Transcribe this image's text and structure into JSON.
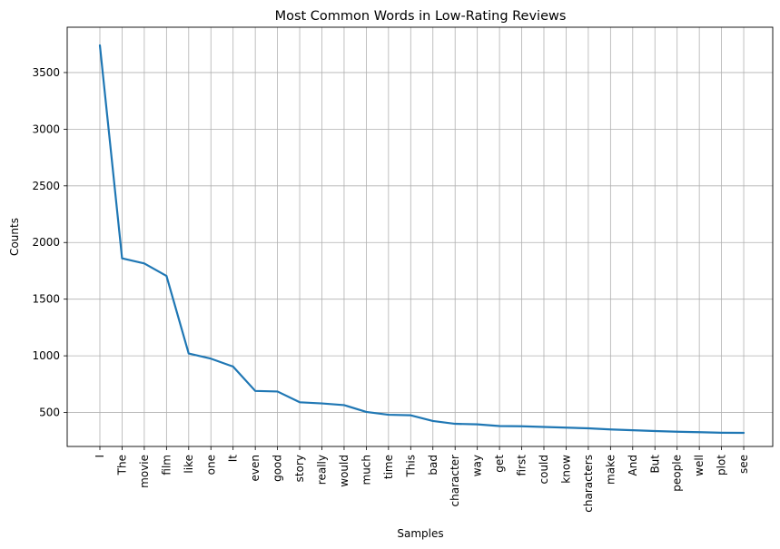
{
  "chart_data": {
    "type": "line",
    "title": "Most Common Words in Low-Rating Reviews",
    "xlabel": "Samples",
    "ylabel": "Counts",
    "categories": [
      "I",
      "The",
      "movie",
      "film",
      "like",
      "one",
      "It",
      "even",
      "good",
      "story",
      "really",
      "would",
      "much",
      "time",
      "This",
      "bad",
      "character",
      "way",
      "get",
      "first",
      "could",
      "know",
      "characters",
      "make",
      "And",
      "But",
      "people",
      "well",
      "plot",
      "see"
    ],
    "series": [
      {
        "color": "#1f77b4",
        "values": [
          3740,
          1860,
          1815,
          1705,
          1020,
          975,
          905,
          690,
          685,
          590,
          580,
          565,
          505,
          480,
          475,
          425,
          400,
          395,
          380,
          378,
          372,
          366,
          360,
          350,
          343,
          336,
          330,
          326,
          321,
          320
        ]
      }
    ],
    "ylim": [
      200,
      3900
    ],
    "yticks": [
      500,
      1000,
      1500,
      2000,
      2500,
      3000,
      3500
    ],
    "grid": true
  }
}
